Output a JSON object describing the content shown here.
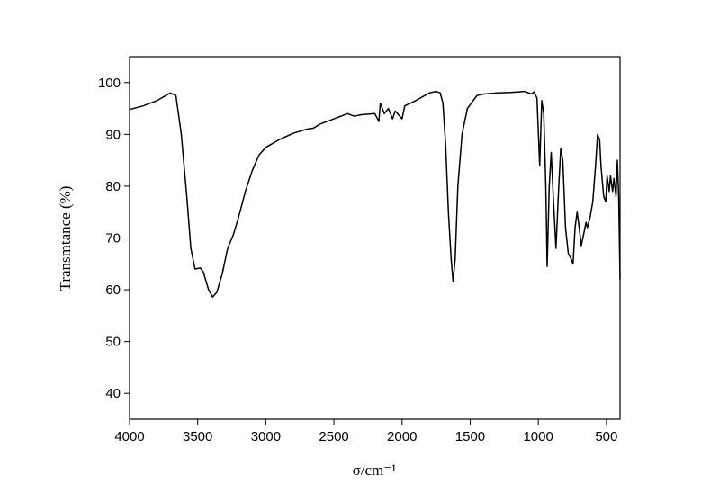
{
  "chart_data": {
    "type": "line",
    "x_label": "σ/cm⁻¹",
    "y_label": "Transmtance (%)",
    "x": [
      4000,
      3900,
      3800,
      3700,
      3660,
      3620,
      3580,
      3550,
      3520,
      3480,
      3460,
      3420,
      3390,
      3360,
      3320,
      3280,
      3240,
      3200,
      3150,
      3100,
      3050,
      3000,
      2900,
      2800,
      2700,
      2650,
      2600,
      2500,
      2400,
      2350,
      2300,
      2200,
      2170,
      2160,
      2130,
      2100,
      2070,
      2050,
      2000,
      1980,
      1900,
      1800,
      1750,
      1720,
      1700,
      1680,
      1660,
      1640,
      1625,
      1610,
      1590,
      1560,
      1520,
      1450,
      1400,
      1300,
      1200,
      1100,
      1050,
      1030,
      1010,
      990,
      975,
      960,
      945,
      935,
      920,
      905,
      890,
      870,
      850,
      835,
      820,
      800,
      780,
      760,
      745,
      730,
      715,
      700,
      685,
      665,
      650,
      640,
      620,
      600,
      580,
      565,
      550,
      540,
      520,
      505,
      495,
      480,
      470,
      455,
      445,
      430,
      420,
      410,
      400
    ],
    "values": [
      94.8,
      95.5,
      96.5,
      98.0,
      97.5,
      90,
      78,
      68,
      64,
      64.2,
      63.5,
      60,
      58.6,
      59.5,
      63,
      68,
      70.5,
      74,
      79,
      83,
      86,
      87.5,
      89,
      90.2,
      91,
      91.2,
      92,
      93,
      94,
      93.5,
      93.8,
      94,
      92.5,
      96,
      94,
      95,
      93,
      94.5,
      93,
      95.5,
      96.5,
      98,
      98.3,
      98,
      96,
      88,
      75,
      66,
      61.5,
      66,
      80,
      90,
      95,
      97.5,
      97.8,
      98,
      98.1,
      98.3,
      97.8,
      98.2,
      97,
      84,
      96.5,
      94,
      80,
      64.5,
      80,
      86.5,
      78,
      68,
      80,
      87.3,
      85,
      72,
      67,
      66,
      65,
      72,
      75,
      72,
      68.5,
      71,
      73,
      72,
      74,
      77,
      84,
      90,
      89,
      84,
      78,
      77,
      82,
      79,
      82,
      79,
      81.5,
      78,
      85,
      78,
      62
    ],
    "color": "#000000",
    "xlim": [
      4000,
      400
    ],
    "ylim": [
      35,
      105
    ],
    "xticks": [
      4000,
      3500,
      3000,
      2500,
      2000,
      1500,
      1000,
      500
    ],
    "yticks": [
      40,
      50,
      60,
      70,
      80,
      90,
      100
    ]
  }
}
